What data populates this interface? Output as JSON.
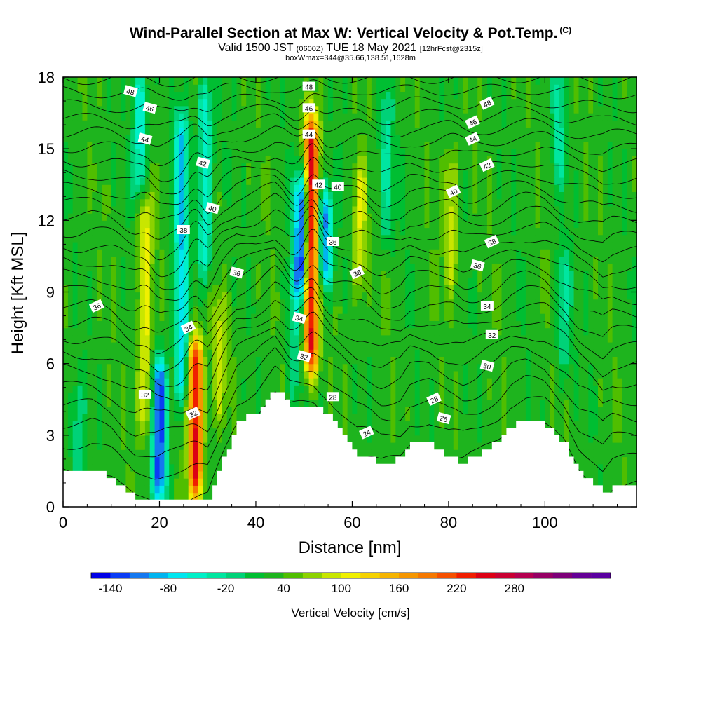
{
  "title": {
    "main": "Wind-Parallel Section at Max W: Vertical Velocity & Pot.Temp.",
    "copyright": "(C)",
    "valid_prefix": "Valid 1500 JST",
    "valid_utc": "(0600Z)",
    "valid_date": "TUE 18 May 2021",
    "forecast": "[12hrFcst@2315z]",
    "box_info": "boxWmax=344@35.66,138.51,1628m"
  },
  "chart_data": {
    "type": "heatmap",
    "xlabel": "Distance [nm]",
    "ylabel": "Height [Kft MSL]",
    "xlim": [
      0,
      119
    ],
    "ylim": [
      0,
      18
    ],
    "x_ticks": [
      0,
      20,
      40,
      60,
      80,
      100
    ],
    "y_ticks": [
      0,
      3,
      6,
      9,
      12,
      15,
      18
    ],
    "background_value": 30,
    "updraft_columns": [
      {
        "x": 27.5,
        "y_bottom": 0.5,
        "y_top": 7.0,
        "peak": 250
      },
      {
        "x": 51.5,
        "y_bottom": 4.5,
        "y_top": 17.5,
        "peak": 250
      },
      {
        "x": 17.0,
        "y_bottom": 2.0,
        "y_top": 14.5,
        "peak": 110
      },
      {
        "x": 61.5,
        "y_bottom": 9.5,
        "y_top": 14.0,
        "peak": 100
      },
      {
        "x": 80.5,
        "y_bottom": 9.5,
        "y_top": 14.5,
        "peak": 95
      },
      {
        "x": 32.5,
        "y_bottom": 4.0,
        "y_top": 8.5,
        "peak": 80
      }
    ],
    "downdraft_columns": [
      {
        "x": 20.0,
        "y_bottom": 0.5,
        "y_top": 6.0,
        "peak": -130
      },
      {
        "x": 16.0,
        "y_bottom": 13.0,
        "y_top": 18.0,
        "peak": -60
      },
      {
        "x": 24.5,
        "y_bottom": 3.0,
        "y_top": 18.0,
        "peak": -75
      },
      {
        "x": 29.5,
        "y_bottom": 9.5,
        "y_top": 18.0,
        "peak": -60
      },
      {
        "x": 49.5,
        "y_bottom": 9.5,
        "y_top": 13.5,
        "peak": -140
      },
      {
        "x": 54.5,
        "y_bottom": 10.0,
        "y_top": 12.5,
        "peak": -110
      },
      {
        "x": 48.0,
        "y_bottom": 4.5,
        "y_top": 10.0,
        "peak": -20
      },
      {
        "x": 67.0,
        "y_bottom": 11.0,
        "y_top": 17.5,
        "peak": -20
      },
      {
        "x": 103.0,
        "y_bottom": 14.0,
        "y_top": 18.0,
        "peak": -20
      },
      {
        "x": 104.0,
        "y_bottom": 6.0,
        "y_top": 10.5,
        "peak": -20
      },
      {
        "x": 3.0,
        "y_bottom": 1.5,
        "y_top": 4.5,
        "peak": -20
      }
    ],
    "terrain": [
      [
        0,
        1.6
      ],
      [
        6,
        1.6
      ],
      [
        10,
        1.2
      ],
      [
        13,
        0.6
      ],
      [
        15,
        0.3
      ],
      [
        19,
        0.3
      ],
      [
        21,
        0.4
      ],
      [
        25,
        0.3
      ],
      [
        30,
        0.4
      ],
      [
        33,
        2.0
      ],
      [
        36,
        3.5
      ],
      [
        40,
        4.0
      ],
      [
        44,
        4.9
      ],
      [
        47,
        4.2
      ],
      [
        52,
        4.2
      ],
      [
        55,
        3.8
      ],
      [
        58,
        3.0
      ],
      [
        61,
        2.2
      ],
      [
        64,
        2.0
      ],
      [
        66,
        1.8
      ],
      [
        70,
        2.0
      ],
      [
        72,
        2.6
      ],
      [
        76,
        2.6
      ],
      [
        80,
        2.0
      ],
      [
        83,
        1.9
      ],
      [
        86,
        2.2
      ],
      [
        90,
        2.8
      ],
      [
        93,
        3.4
      ],
      [
        96,
        3.6
      ],
      [
        100,
        3.4
      ],
      [
        104,
        2.6
      ],
      [
        107,
        1.5
      ],
      [
        110,
        1.0
      ],
      [
        112,
        0.5
      ],
      [
        114,
        0.9
      ],
      [
        119,
        0.9
      ]
    ],
    "isentropes": {
      "base_theta": 22,
      "step": 1,
      "count": 27,
      "curves": [
        {
          "label": "24",
          "x": 63,
          "y": 3.1
        },
        {
          "label": "26",
          "x": 79,
          "y": 3.7
        },
        {
          "label": "28",
          "x": 56,
          "y": 4.6
        },
        {
          "label": "28",
          "x": 77,
          "y": 4.5
        },
        {
          "label": "30",
          "x": 88,
          "y": 5.9
        },
        {
          "label": "32",
          "x": 17,
          "y": 4.7
        },
        {
          "label": "32",
          "x": 27,
          "y": 3.9
        },
        {
          "label": "32",
          "x": 50,
          "y": 6.3
        },
        {
          "label": "32",
          "x": 89,
          "y": 7.2
        },
        {
          "label": "34",
          "x": 26,
          "y": 7.5
        },
        {
          "label": "34",
          "x": 49,
          "y": 7.9
        },
        {
          "label": "34",
          "x": 88,
          "y": 8.4
        },
        {
          "label": "36",
          "x": 7,
          "y": 8.4
        },
        {
          "label": "36",
          "x": 36,
          "y": 9.8
        },
        {
          "label": "36",
          "x": 56,
          "y": 11.1
        },
        {
          "label": "36",
          "x": 61,
          "y": 9.8
        },
        {
          "label": "36",
          "x": 86,
          "y": 10.1
        },
        {
          "label": "38",
          "x": 25,
          "y": 11.6
        },
        {
          "label": "38",
          "x": 89,
          "y": 11.1
        },
        {
          "label": "40",
          "x": 31,
          "y": 12.5
        },
        {
          "label": "40",
          "x": 57,
          "y": 13.4
        },
        {
          "label": "40",
          "x": 81,
          "y": 13.2
        },
        {
          "label": "42",
          "x": 29,
          "y": 14.4
        },
        {
          "label": "42",
          "x": 53,
          "y": 13.5
        },
        {
          "label": "42",
          "x": 88,
          "y": 14.3
        },
        {
          "label": "44",
          "x": 17,
          "y": 15.4
        },
        {
          "label": "44",
          "x": 51,
          "y": 15.6
        },
        {
          "label": "44",
          "x": 85,
          "y": 15.4
        },
        {
          "label": "46",
          "x": 18,
          "y": 16.7
        },
        {
          "label": "46",
          "x": 51,
          "y": 16.7
        },
        {
          "label": "46",
          "x": 85,
          "y": 16.1
        },
        {
          "label": "48",
          "x": 14,
          "y": 17.4
        },
        {
          "label": "48",
          "x": 51,
          "y": 17.6
        },
        {
          "label": "48",
          "x": 88,
          "y": 16.9
        }
      ]
    },
    "colorbar": {
      "title": "Vertical Velocity [cm/s]",
      "min": -160,
      "step": 20,
      "colors": [
        "#0000e6",
        "#0a3cf5",
        "#1478f0",
        "#00b4f0",
        "#00e6f0",
        "#00f0c8",
        "#00e6a0",
        "#00d278",
        "#00be32",
        "#1eb41e",
        "#50be00",
        "#8cd200",
        "#c8e600",
        "#f0f000",
        "#f5d200",
        "#f5b400",
        "#f59600",
        "#f57800",
        "#f55000",
        "#f01e00",
        "#dc0014",
        "#c80032",
        "#b40050",
        "#960064",
        "#7d0078",
        "#640096",
        "#5a00a0"
      ],
      "tick_labels": [
        "-140",
        "-80",
        "-20",
        "40",
        "100",
        "160",
        "220",
        "280"
      ]
    }
  }
}
